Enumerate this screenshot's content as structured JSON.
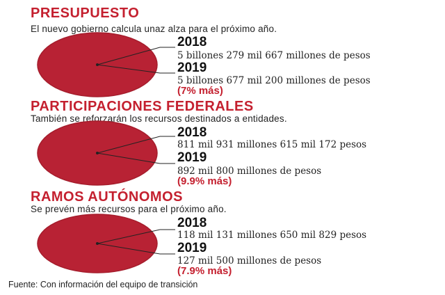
{
  "colors": {
    "accent": "#c4202f",
    "circle_fill": "#b82234",
    "circle_stroke": "#a51d2c",
    "line": "#222222"
  },
  "chart_data": [
    {
      "type": "pie",
      "title": "PRESUPUESTO",
      "subtitle": "El nuevo gobierno calcula unaz alza para el próximo año.",
      "entries": [
        {
          "year": "2018",
          "amount": "5 billones 279 mil 667 millones de pesos",
          "value": 5279667000000
        },
        {
          "year": "2019",
          "amount": "5 billones 677 mil 200 millones de pesos",
          "value": 5677200000000,
          "change": "(7% más)"
        }
      ]
    },
    {
      "type": "pie",
      "title": "PARTICIPACIONES FEDERALES",
      "subtitle": "También se reforzarán los recursos destinados a entidades.",
      "entries": [
        {
          "year": "2018",
          "amount": "811 mil 931 millones 615 mil 172 pesos",
          "value": 811931615172
        },
        {
          "year": "2019",
          "amount": "892 mil 800 millones de pesos",
          "value": 892800000000,
          "change": "(9.9% más)"
        }
      ]
    },
    {
      "type": "pie",
      "title": "RAMOS AUTÓNOMOS",
      "subtitle": "Se prevén más recursos para el próximo año.",
      "entries": [
        {
          "year": "2018",
          "amount": "118 mil 131 millones 650 mil 829 pesos",
          "value": 118131650829
        },
        {
          "year": "2019",
          "amount": "127 mil 500 millones de pesos",
          "value": 127500000000,
          "change": "(7.9% más)"
        }
      ]
    }
  ],
  "footer": {
    "source": "Fuente: Con información del equipo de transición"
  }
}
